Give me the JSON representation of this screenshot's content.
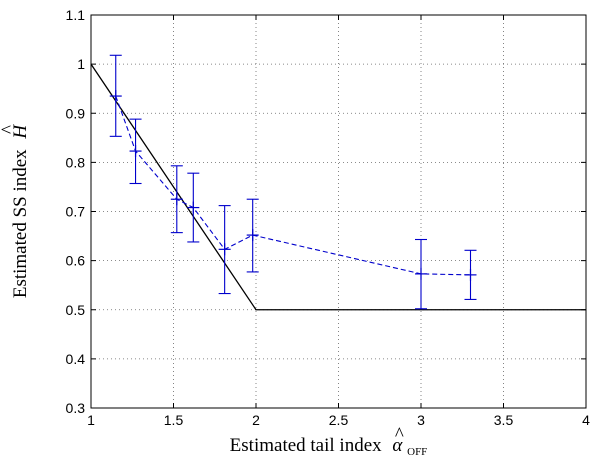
{
  "chart_data": {
    "type": "line",
    "title": "",
    "xlabel": "Estimated tail index",
    "xlabel_symbol": "α",
    "xlabel_subscript": "OFF",
    "ylabel": "Estimated SS index",
    "ylabel_symbol": "H",
    "xlim": [
      1,
      4
    ],
    "ylim": [
      0.3,
      1.1
    ],
    "xticks": [
      1,
      1.5,
      2,
      2.5,
      3,
      3.5,
      4
    ],
    "xtick_labels": [
      "1",
      "1.5",
      "2",
      "2.5",
      "3",
      "3.5",
      "4"
    ],
    "yticks": [
      0.3,
      0.4,
      0.5,
      0.6,
      0.7,
      0.8,
      0.9,
      1,
      1.1
    ],
    "ytick_labels": [
      "0.3",
      "0.4",
      "0.5",
      "0.6",
      "0.7",
      "0.8",
      "0.9",
      "1",
      "1.1"
    ],
    "grid": true,
    "legend": "none",
    "series": [
      {
        "style": "solid",
        "color": "#000000",
        "x": [
          1,
          2,
          4
        ],
        "y": [
          1.0,
          0.5,
          0.5
        ]
      },
      {
        "style": "dashed-errorbar",
        "color": "#0000cc",
        "x": [
          1.15,
          1.27,
          1.52,
          1.62,
          1.81,
          1.98,
          3.0,
          3.3
        ],
        "y": [
          0.935,
          0.823,
          0.725,
          0.708,
          0.623,
          0.652,
          0.573,
          0.571
        ],
        "err_low": [
          0.853,
          0.757,
          0.657,
          0.638,
          0.533,
          0.577,
          0.502,
          0.521
        ],
        "err_high": [
          1.018,
          0.888,
          0.793,
          0.778,
          0.712,
          0.725,
          0.643,
          0.621
        ]
      }
    ]
  }
}
